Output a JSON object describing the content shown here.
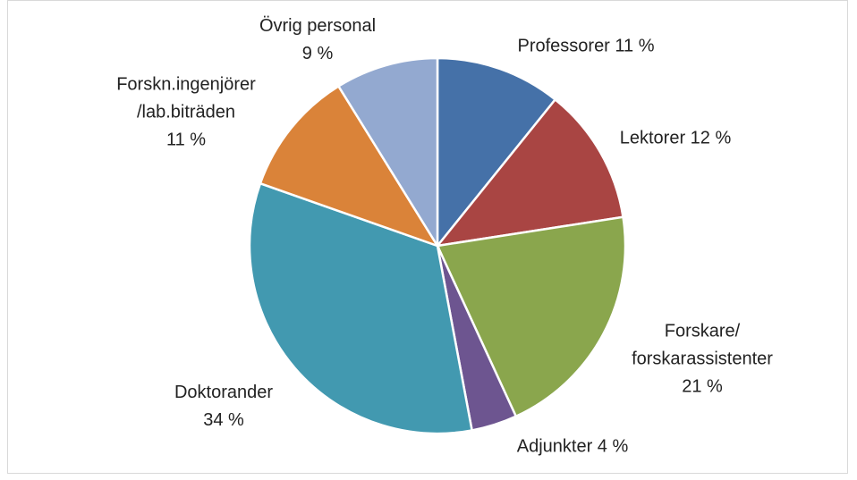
{
  "chart_data": {
    "type": "pie",
    "categories": [
      "Professorer",
      "Lektorer",
      "Forskare/\nforskarassistenter",
      "Adjunkter",
      "Doktorander",
      "Forskn.ingenjörer\n/lab.biträden",
      "Övrig personal"
    ],
    "values": [
      11,
      12,
      21,
      4,
      34,
      11,
      9
    ],
    "value_labels": [
      "11 %",
      "12 %",
      "21 %",
      "4 %",
      "34 %",
      "11 %",
      "9 %"
    ],
    "colors": [
      "#4571a8",
      "#a94543",
      "#8aa64d",
      "#6d5590",
      "#4299b0",
      "#da8339",
      "#93a9d0"
    ]
  }
}
